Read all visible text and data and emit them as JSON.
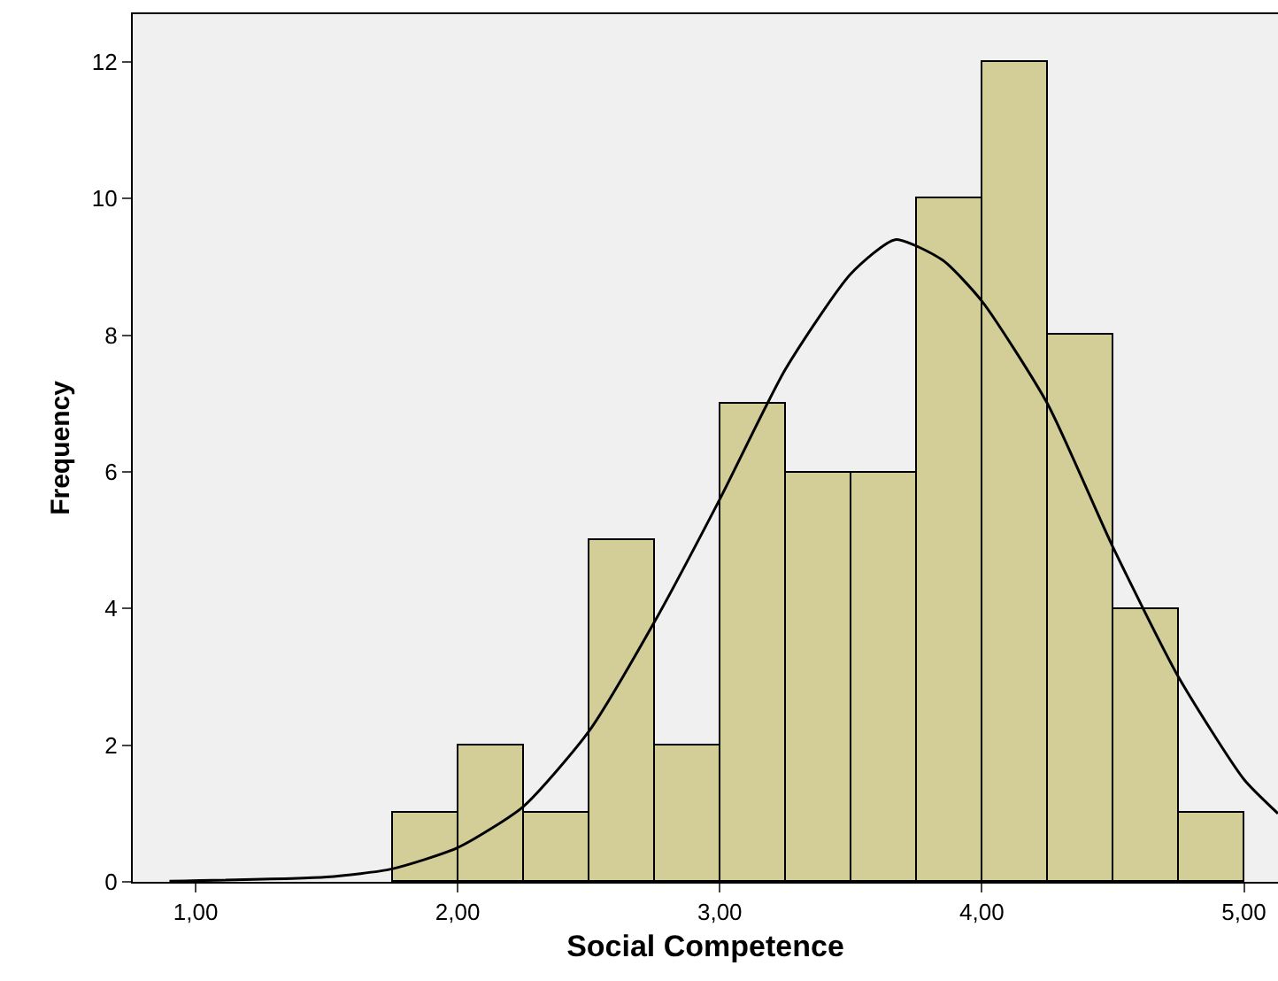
{
  "chart_data": {
    "type": "histogram",
    "xlabel": "Social Competence",
    "ylabel": "Frequency",
    "bins": [
      1.75,
      2.0,
      2.25,
      2.5,
      2.75,
      3.0,
      3.25,
      3.5,
      3.75,
      4.0,
      4.25,
      4.5,
      4.75,
      5.0
    ],
    "values": [
      1,
      2,
      1,
      5,
      2,
      7,
      6,
      6,
      10,
      12,
      8,
      4,
      1
    ],
    "color": "#d3ce97",
    "series": [
      {
        "type": "line",
        "color": "#000000",
        "x": [
          0.9,
          1.5,
          1.75,
          2.0,
          2.25,
          2.5,
          2.75,
          3.0,
          3.25,
          3.5,
          3.67,
          3.85,
          4.0,
          4.25,
          4.5,
          4.75,
          5.0,
          5.13
        ],
        "values": [
          0.01,
          0.07,
          0.19,
          0.5,
          1.1,
          2.2,
          3.8,
          5.6,
          7.5,
          8.9,
          9.4,
          9.1,
          8.5,
          7.0,
          4.9,
          3.0,
          1.5,
          1.0
        ]
      }
    ],
    "xlim": [
      0.76,
      5.13
    ],
    "ylim": [
      0,
      12.7
    ],
    "xticks": [
      {
        "value": 1,
        "label": "1,00"
      },
      {
        "value": 2,
        "label": "2,00"
      },
      {
        "value": 3,
        "label": "3,00"
      },
      {
        "value": 4,
        "label": "4,00"
      },
      {
        "value": 5,
        "label": "5,00"
      }
    ],
    "yticks": [
      0,
      2,
      4,
      6,
      8,
      10,
      12
    ],
    "grid": false,
    "legend": false,
    "marker": "none",
    "line_style": "solid"
  }
}
